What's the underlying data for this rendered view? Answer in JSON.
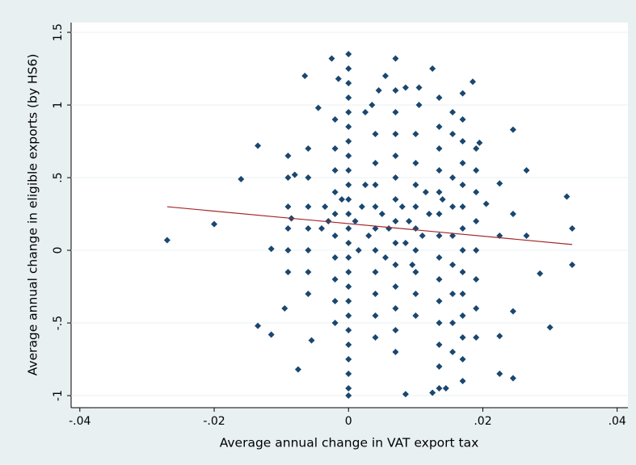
{
  "chart_data": {
    "type": "scatter",
    "x_label": "Average annual change in VAT export tax",
    "y_label": "Average annual change in eligible exports (by HS6)",
    "xlim": [
      -0.0413,
      0.0416
    ],
    "ylim": [
      -1.083,
      1.567
    ],
    "xticks": [
      {
        "value": -0.04,
        "label": "-.04"
      },
      {
        "value": -0.02,
        "label": "-.02"
      },
      0,
      {
        "value": 0.02,
        "label": ".02"
      },
      {
        "value": 0.04,
        "label": ".04"
      }
    ],
    "yticks": [
      -1,
      {
        "value": -0.5,
        "label": "-.5"
      },
      0,
      {
        "value": 0.5,
        "label": ".5"
      },
      1,
      1.5
    ],
    "grid": true,
    "series": [
      {
        "color": "#1a476f",
        "marker": "diamond",
        "x": [
          -0.027,
          -0.02,
          -0.016,
          -0.0135,
          -0.0135,
          -0.0115,
          -0.0115,
          -0.0095,
          -0.0085,
          -0.0075,
          -0.0065,
          -0.0055,
          -0.008,
          -0.0045,
          -0.0025,
          -0.0015,
          0.0035,
          0.0045,
          0.0105,
          0.0085,
          0.0125,
          0.0155,
          0.0185,
          0.0125,
          0.0085,
          0.0145,
          0.0225,
          0.0245,
          0.0245,
          0.0245,
          0.0265,
          0.0265,
          0.0285,
          0.03,
          0.0325,
          0.0333,
          0.0333,
          0.0225,
          0.0225,
          0.0225,
          0.0245,
          0.0205,
          0.0195,
          0.0105,
          0.0055,
          0.0025,
          0,
          0,
          0,
          0,
          0,
          0,
          0,
          0,
          0,
          0,
          0,
          0,
          0,
          0,
          0,
          0,
          0,
          0,
          0,
          0,
          0,
          0,
          0,
          0,
          0,
          0.007,
          0.007,
          0.007,
          0.007,
          0.007,
          0.007,
          0.007,
          0.007,
          0.007,
          0.007,
          0.007,
          0.007,
          0.007,
          0.007,
          0.0135,
          0.0135,
          0.0135,
          0.0135,
          0.0135,
          0.0135,
          0.0135,
          0.0135,
          0.0135,
          0.0135,
          0.0135,
          0.0135,
          0.0135,
          0.0135,
          0.017,
          0.017,
          0.017,
          0.017,
          0.017,
          0.017,
          0.017,
          0.017,
          0.017,
          0.017,
          0.017,
          0.017,
          0.017,
          0.017,
          -0.002,
          -0.002,
          -0.002,
          -0.002,
          -0.002,
          -0.002,
          -0.002,
          -0.002,
          -0.002,
          -0.002,
          0.004,
          0.004,
          0.004,
          0.004,
          0.004,
          0.004,
          0.004,
          0.004,
          0.004,
          0.004,
          0.01,
          0.01,
          0.01,
          0.01,
          0.01,
          0.01,
          0.01,
          0.01,
          0.01,
          -0.006,
          -0.006,
          -0.006,
          -0.006,
          -0.006,
          -0.006,
          -0.006,
          -0.009,
          -0.009,
          -0.009,
          -0.009,
          -0.009,
          -0.009,
          0.019,
          0.019,
          0.019,
          0.019,
          0.019,
          0.019,
          0.019,
          0.019,
          0.0155,
          0.0155,
          0.0155,
          0.0155,
          0.0155,
          0.0155,
          0.0155,
          0.0155,
          0.001,
          0.002,
          0.003,
          0.005,
          0.006,
          0.008,
          0.009,
          0.011,
          0.012,
          0.014,
          -0.001,
          -0.003,
          -0.004,
          0.0015,
          0.0055,
          0.0085,
          0.0115,
          0.0025,
          -0.0035,
          0.0095
        ],
        "values": [
          0.07,
          0.18,
          0.49,
          0.72,
          -0.52,
          0.01,
          -0.58,
          -0.4,
          0.22,
          -0.82,
          1.2,
          -0.62,
          0.52,
          0.98,
          1.32,
          1.18,
          1.0,
          1.1,
          1.12,
          1.12,
          1.25,
          0.95,
          1.16,
          -0.98,
          -0.99,
          -0.95,
          -0.85,
          0.83,
          -0.88,
          -0.42,
          0.55,
          0.1,
          -0.16,
          -0.53,
          0.37,
          0.15,
          -0.1,
          0.46,
          0.1,
          -0.59,
          0.25,
          0.32,
          0.74,
          1.0,
          1.2,
          0.95,
          -1,
          -0.95,
          -0.85,
          -0.75,
          -0.65,
          -0.55,
          -0.45,
          -0.35,
          -0.25,
          -0.15,
          -0.05,
          0.05,
          0.15,
          0.25,
          0.35,
          0.45,
          0.55,
          0.65,
          0.75,
          0.85,
          0.95,
          1.05,
          1.15,
          1.25,
          1.35,
          -0.7,
          -0.55,
          -0.4,
          -0.25,
          -0.1,
          0.05,
          0.2,
          0.35,
          0.5,
          0.65,
          0.8,
          0.95,
          1.1,
          1.32,
          -0.95,
          -0.8,
          -0.65,
          -0.5,
          -0.35,
          -0.2,
          -0.05,
          0.1,
          0.25,
          0.4,
          0.55,
          0.7,
          0.85,
          1.05,
          -0.9,
          -0.75,
          -0.6,
          -0.45,
          -0.3,
          -0.15,
          0,
          0.15,
          0.3,
          0.45,
          0.6,
          0.75,
          0.9,
          1.08,
          -0.5,
          -0.35,
          -0.2,
          -0.05,
          0.1,
          0.25,
          0.4,
          0.55,
          0.7,
          0.9,
          -0.6,
          -0.45,
          -0.3,
          -0.15,
          0,
          0.15,
          0.3,
          0.45,
          0.6,
          0.8,
          -0.45,
          -0.3,
          -0.15,
          0,
          0.15,
          0.3,
          0.45,
          0.6,
          0.8,
          -0.3,
          -0.15,
          0,
          0.15,
          0.3,
          0.5,
          0.7,
          -0.15,
          0,
          0.15,
          0.3,
          0.5,
          0.65,
          -0.6,
          -0.4,
          -0.2,
          0,
          0.2,
          0.4,
          0.55,
          0.7,
          -0.7,
          -0.5,
          -0.3,
          -0.1,
          0.1,
          0.3,
          0.5,
          0.8,
          0.2,
          0.3,
          0.1,
          0.25,
          0.15,
          0.3,
          0.2,
          0.1,
          0.25,
          0.35,
          0.35,
          0.2,
          0.15,
          0.0,
          -0.05,
          0.05,
          0.4,
          0.45,
          0.3,
          -0.1
        ]
      },
      {
        "color": "#a3282b",
        "marker": "line",
        "x": [
          -0.027,
          0.0333
        ],
        "values": [
          0.3,
          0.04
        ]
      }
    ]
  }
}
